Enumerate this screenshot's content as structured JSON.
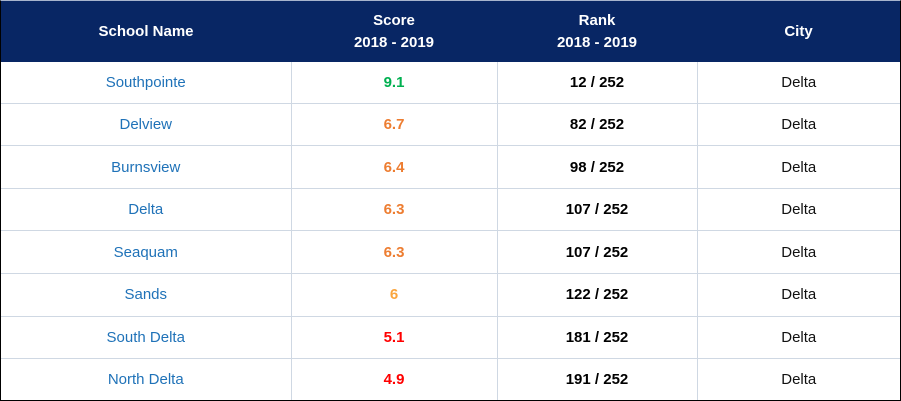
{
  "table": {
    "columns": [
      {
        "label": "School Name"
      },
      {
        "label": "Score",
        "sublabel": "2018 - 2019"
      },
      {
        "label": "Rank",
        "sublabel": "2018 - 2019"
      },
      {
        "label": "City"
      }
    ],
    "rows": [
      {
        "school": "Southpointe",
        "score": "9.1",
        "score_color": "#00B050",
        "rank": "12 / 252",
        "city": "Delta"
      },
      {
        "school": "Delview",
        "score": "6.7",
        "score_color": "#ED7D31",
        "rank": "82 / 252",
        "city": "Delta"
      },
      {
        "school": "Burnsview",
        "score": "6.4",
        "score_color": "#ED7D31",
        "rank": "98 / 252",
        "city": "Delta"
      },
      {
        "school": "Delta",
        "score": "6.3",
        "score_color": "#ED7D31",
        "rank": "107 / 252",
        "city": "Delta"
      },
      {
        "school": "Seaquam",
        "score": "6.3",
        "score_color": "#ED7D31",
        "rank": "107 / 252",
        "city": "Delta"
      },
      {
        "school": "Sands",
        "score": "6",
        "score_color": "#FAA53D",
        "rank": "122 / 252",
        "city": "Delta"
      },
      {
        "school": "South Delta",
        "score": "5.1",
        "score_color": "#FF0000",
        "rank": "181 / 252",
        "city": "Delta"
      },
      {
        "school": "North Delta",
        "score": "4.9",
        "score_color": "#FF0000",
        "rank": "191 / 252",
        "city": "Delta"
      }
    ]
  },
  "colors": {
    "header_bg": "#082664",
    "header_text": "#FFFFFF",
    "school_link_blue": "#1F72B8",
    "row_divider": "#CFD8E3",
    "score_green": "#00B050",
    "score_orange": "#ED7D31",
    "score_light_orange": "#FAA53D",
    "score_red": "#FF0000"
  }
}
